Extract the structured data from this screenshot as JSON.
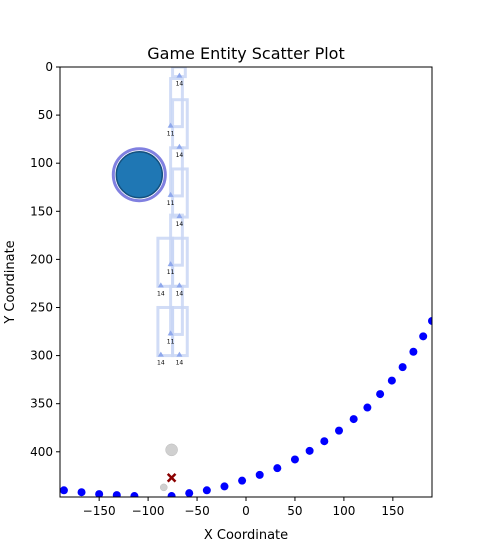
{
  "chart_data": {
    "type": "scatter",
    "title": "Game Entity Scatter Plot",
    "xlabel": "X Coordinate",
    "ylabel": "Y Coordinate",
    "xlim": [
      -190,
      190
    ],
    "ylim": [
      447,
      0
    ],
    "y_inverted": true,
    "grid": false,
    "x_ticks": [
      -150,
      -100,
      -50,
      0,
      50,
      100,
      150
    ],
    "y_ticks": [
      0,
      50,
      100,
      150,
      200,
      250,
      300,
      350,
      400
    ],
    "colors": {
      "curve": "#0000ff",
      "big_circle": "#1f77b4",
      "big_circle_edge": "#8080e0",
      "frames": "#c9d6f5",
      "triangles": "#8fa8ec",
      "gray": "#d0d0d0",
      "cross": "#8b0000"
    },
    "curve_points": [
      {
        "x": -186,
        "y": 440
      },
      {
        "x": -168,
        "y": 442
      },
      {
        "x": -150,
        "y": 444
      },
      {
        "x": -132,
        "y": 445
      },
      {
        "x": -114,
        "y": 446
      },
      {
        "x": -76,
        "y": 446
      },
      {
        "x": -58,
        "y": 443
      },
      {
        "x": -40,
        "y": 440
      },
      {
        "x": -22,
        "y": 436
      },
      {
        "x": -4,
        "y": 430
      },
      {
        "x": 14,
        "y": 424
      },
      {
        "x": 32,
        "y": 417
      },
      {
        "x": 50,
        "y": 408
      },
      {
        "x": 65,
        "y": 399
      },
      {
        "x": 80,
        "y": 389
      },
      {
        "x": 95,
        "y": 378
      },
      {
        "x": 110,
        "y": 366
      },
      {
        "x": 124,
        "y": 354
      },
      {
        "x": 137,
        "y": 340
      },
      {
        "x": 149,
        "y": 326
      },
      {
        "x": 160,
        "y": 312
      },
      {
        "x": 171,
        "y": 296
      },
      {
        "x": 181,
        "y": 280
      },
      {
        "x": 190,
        "y": 264
      }
    ],
    "big_circle": {
      "x": -109,
      "y": 112
    },
    "frames": [
      {
        "x0": -75,
        "x1": -62,
        "y0": 0,
        "y1": 10
      },
      {
        "x0": -77,
        "x1": -65,
        "y0": 12,
        "y1": 62
      },
      {
        "x0": -75,
        "x1": -60,
        "y0": 34,
        "y1": 84
      },
      {
        "x0": -77,
        "x1": -65,
        "y0": 84,
        "y1": 134
      },
      {
        "x0": -75,
        "x1": -60,
        "y0": 106,
        "y1": 156
      },
      {
        "x0": -77,
        "x1": -65,
        "y0": 154,
        "y1": 206
      },
      {
        "x0": -75,
        "x1": -60,
        "y0": 178,
        "y1": 228
      },
      {
        "x0": -90,
        "x1": -75,
        "y0": 178,
        "y1": 228
      },
      {
        "x0": -77,
        "x1": -65,
        "y0": 228,
        "y1": 278
      },
      {
        "x0": -75,
        "x1": -60,
        "y0": 250,
        "y1": 300
      },
      {
        "x0": -90,
        "x1": -75,
        "y0": 250,
        "y1": 300
      }
    ],
    "triangles": [
      {
        "x": -68,
        "y": 10,
        "label": "14"
      },
      {
        "x": -77,
        "y": 62,
        "label": "11"
      },
      {
        "x": -68,
        "y": 84,
        "label": "14"
      },
      {
        "x": -77,
        "y": 134,
        "label": "11"
      },
      {
        "x": -68,
        "y": 156,
        "label": "14"
      },
      {
        "x": -77,
        "y": 206,
        "label": "11"
      },
      {
        "x": -87,
        "y": 228,
        "label": "14"
      },
      {
        "x": -68,
        "y": 228,
        "label": "14"
      },
      {
        "x": -77,
        "y": 278,
        "label": "11"
      },
      {
        "x": -87,
        "y": 300,
        "label": "14"
      },
      {
        "x": -68,
        "y": 300,
        "label": "14"
      }
    ],
    "top_label": "11",
    "gray_points": [
      {
        "x": -76,
        "y": 398,
        "size": "large"
      },
      {
        "x": -84,
        "y": 437,
        "size": "small"
      }
    ],
    "cross_point": {
      "x": -76,
      "y": 427
    }
  }
}
